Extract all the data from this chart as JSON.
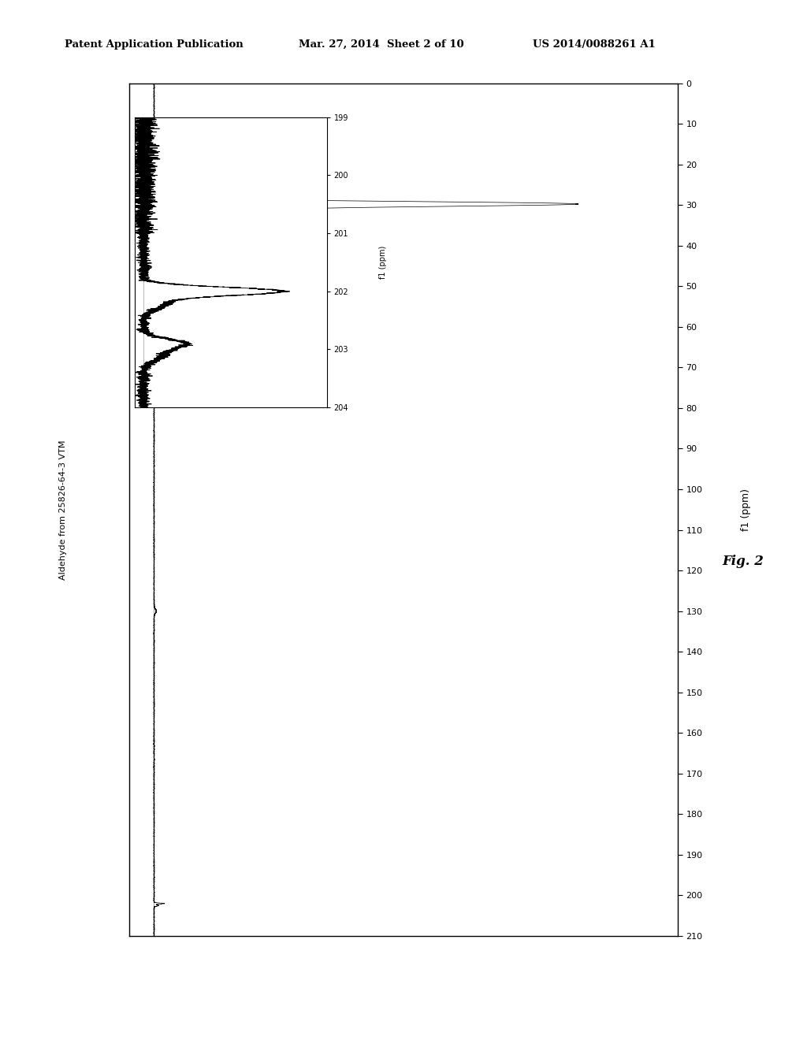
{
  "header_left": "Patent Application Publication",
  "header_mid": "Mar. 27, 2014  Sheet 2 of 10",
  "header_right": "US 2014/0088261 A1",
  "fig_label": "Fig. 2",
  "sample_label": "Aldehyde from 25826-64-3 VTM",
  "xlabel": "f1 (ppm)",
  "background_color": "#ffffff",
  "spectrum_color": "#000000",
  "y_ticks": [
    0,
    10,
    20,
    30,
    40,
    50,
    60,
    70,
    80,
    90,
    100,
    110,
    120,
    130,
    140,
    150,
    160,
    170,
    180,
    190,
    200,
    210
  ],
  "inset_y_ticks": [
    199,
    200,
    201,
    202,
    203,
    204
  ],
  "inset_xlabel": "f1 (ppm)"
}
